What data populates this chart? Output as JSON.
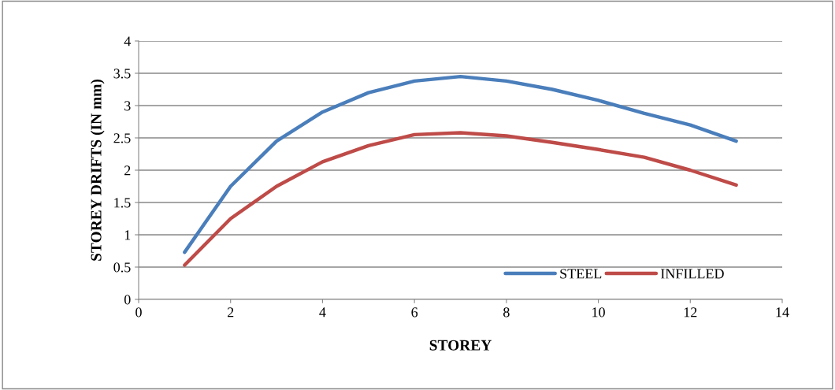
{
  "chart_data": {
    "type": "line",
    "xlabel": "STOREY",
    "ylabel": "STOREY DRIFTS (IN mm)",
    "x": [
      1,
      2,
      3,
      4,
      5,
      6,
      7,
      8,
      9,
      10,
      11,
      12,
      13
    ],
    "series": [
      {
        "name": "STEEL",
        "color": "#4a7ebb",
        "values": [
          0.73,
          1.75,
          2.45,
          2.9,
          3.2,
          3.38,
          3.45,
          3.38,
          3.25,
          3.08,
          2.88,
          2.7,
          2.45
        ]
      },
      {
        "name": "INFILLED",
        "color": "#be4b48",
        "values": [
          0.53,
          1.25,
          1.75,
          2.13,
          2.38,
          2.55,
          2.58,
          2.53,
          2.43,
          2.32,
          2.2,
          2.0,
          1.77
        ]
      }
    ],
    "xlim": [
      0,
      14
    ],
    "xticks": [
      0,
      2,
      4,
      6,
      8,
      10,
      12,
      14
    ],
    "ylim": [
      0,
      4
    ],
    "yticks": [
      0,
      0.5,
      1,
      1.5,
      2,
      2.5,
      3,
      3.5,
      4
    ],
    "grid": "y",
    "legend": "bottom right",
    "marker": "none",
    "line_style": "solid"
  }
}
